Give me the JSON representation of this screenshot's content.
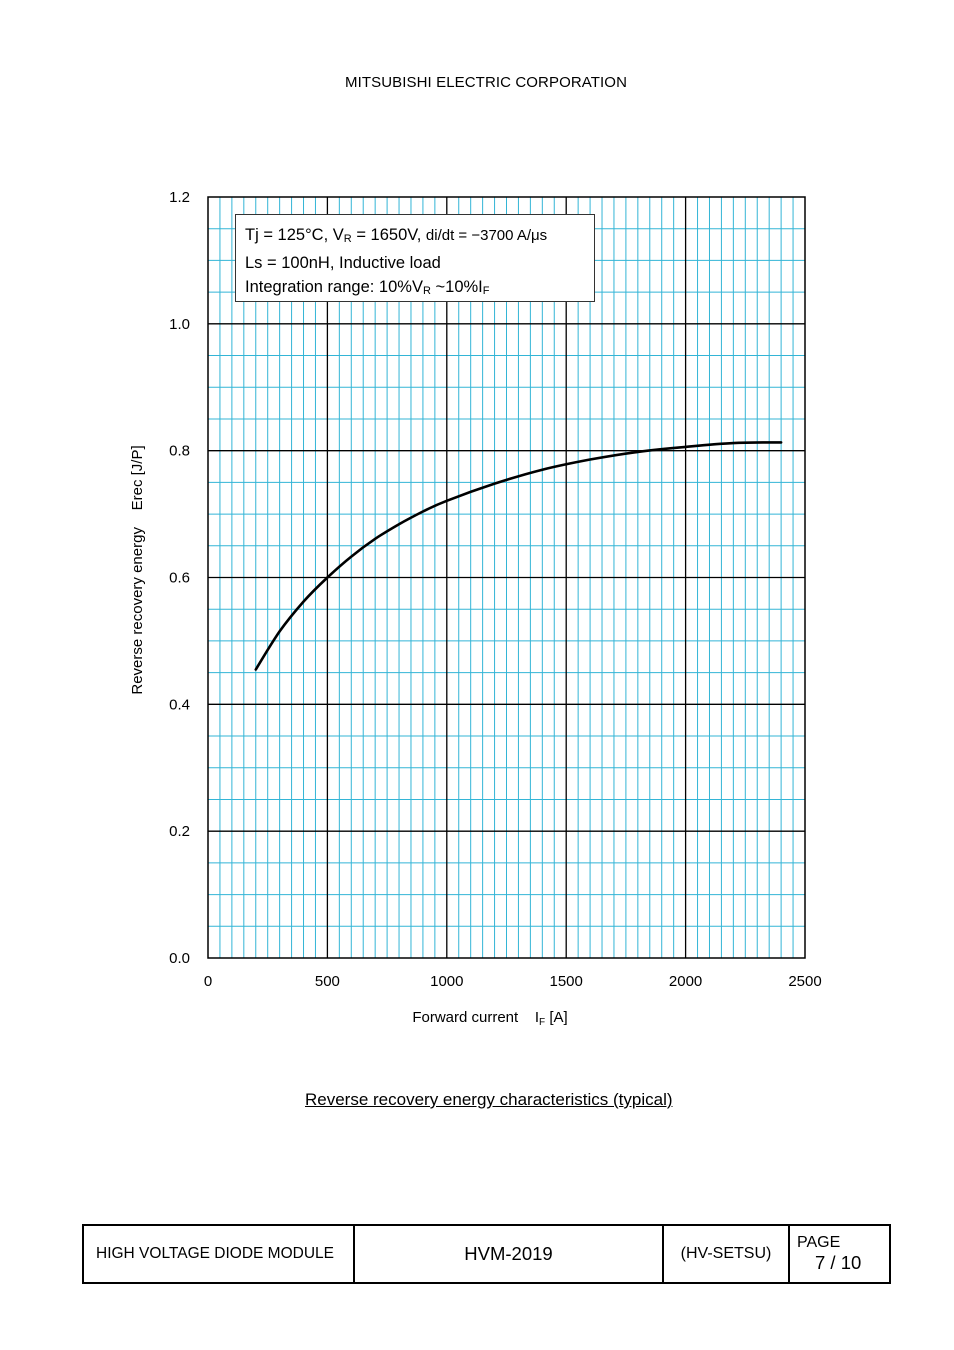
{
  "header": {
    "company": "MITSUBISHI ELECTRIC CORPORATION"
  },
  "legend": {
    "line1_a": "Tj = 125°C, V",
    "line1_sub": "R",
    "line1_b": " = 1650V, ",
    "line1_c": "di/dt = −3700 A/μs",
    "line2": "Ls = 100nH, Inductive load",
    "line3_a": "Integration range: 10%V",
    "line3_sub1": "R",
    "line3_b": " ~10%I",
    "line3_sub2": "F"
  },
  "caption": "Reverse recovery energy characteristics (typical)",
  "footer": {
    "product": "HIGH VOLTAGE DIODE MODULE",
    "model": "HVM-2019",
    "code": "(HV-SETSU)",
    "page_label": "PAGE",
    "page_number": "7 / 10"
  },
  "chart_data": {
    "type": "line",
    "xlabel_main": "Forward current",
    "xlabel_symbol": "I",
    "xlabel_sub": "F",
    "xlabel_unit": " [A]",
    "ylabel": "Reverse recovery energy    Erec [J/P]",
    "xlim": [
      0,
      2500
    ],
    "ylim": [
      0,
      1.2
    ],
    "x_ticks": [
      "0",
      "500",
      "1000",
      "1500",
      "2000",
      "2500"
    ],
    "y_ticks": [
      "0.0",
      "0.2",
      "0.4",
      "0.6",
      "0.8",
      "1.0",
      "1.2"
    ],
    "grid": true,
    "series": [
      {
        "x": [
          200,
          300,
          400,
          500,
          600,
          700,
          800,
          900,
          1000,
          1200,
          1400,
          1600,
          1800,
          2000,
          2200,
          2400
        ],
        "y": [
          0.455,
          0.515,
          0.562,
          0.6,
          0.633,
          0.661,
          0.684,
          0.704,
          0.721,
          0.748,
          0.77,
          0.786,
          0.798,
          0.806,
          0.812,
          0.813
        ]
      }
    ],
    "colors": {
      "major_grid": "#000000",
      "minor_grid": "#33b5d6",
      "curve": "#000000"
    }
  }
}
